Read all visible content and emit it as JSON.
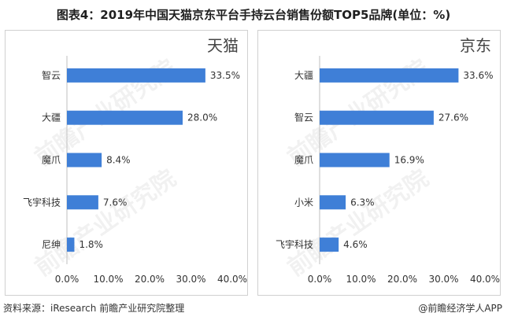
{
  "title": "图表4：2019年中国天猫京东平台手持云台销售份额TOP5品牌(单位：%)",
  "footer": {
    "source": "资料来源：iResearch 前瞻产业研究院整理",
    "credit": "@前瞻经济学人APP"
  },
  "colors": {
    "bar": "#3f7fd7",
    "axis": "#bfbfbf"
  },
  "chart_data": [
    {
      "type": "bar",
      "orientation": "horizontal",
      "title": "天猫",
      "categories": [
        "智云",
        "大疆",
        "魔爪",
        "飞宇科技",
        "尼绅"
      ],
      "values": [
        33.5,
        28.0,
        8.4,
        7.6,
        1.8
      ],
      "value_labels": [
        "33.5%",
        "28.0%",
        "8.4%",
        "7.6%",
        "1.8%"
      ],
      "xlim": [
        0,
        40
      ],
      "ticks": [
        "0.0%",
        "10.0%",
        "20.0%",
        "30.0%",
        "40.0%"
      ],
      "grid": false,
      "legend": "none"
    },
    {
      "type": "bar",
      "orientation": "horizontal",
      "title": "京东",
      "categories": [
        "大疆",
        "智云",
        "魔爪",
        "小米",
        "飞宇科技"
      ],
      "values": [
        33.6,
        27.6,
        16.9,
        6.3,
        4.6
      ],
      "value_labels": [
        "33.6%",
        "27.6%",
        "16.9%",
        "6.3%",
        "4.6%"
      ],
      "xlim": [
        0,
        40
      ],
      "ticks": [
        "0.0%",
        "10.0%",
        "20.0%",
        "30.0%",
        "40.0%"
      ],
      "grid": false,
      "legend": "none"
    }
  ]
}
